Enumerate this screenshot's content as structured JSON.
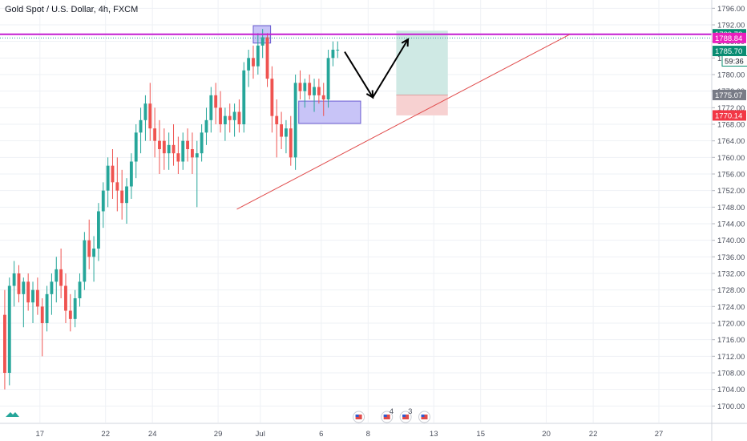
{
  "header": {
    "symbol_title": "Gold Spot / U.S. Dollar, 4h, FXCM"
  },
  "chart_data": {
    "type": "candlestick",
    "symbol": "Gold Spot / U.S. Dollar",
    "timeframe": "4h",
    "source": "FXCM",
    "ylim": [
      1696,
      1798
    ],
    "y_ticks": [
      1700,
      1704,
      1708,
      1712,
      1716,
      1720,
      1724,
      1728,
      1732,
      1736,
      1740,
      1744,
      1748,
      1752,
      1756,
      1760,
      1764,
      1768,
      1772,
      1776,
      1780,
      1784,
      1788,
      1792,
      1796
    ],
    "y_tick_labels": [
      "1700.00",
      "1704.00",
      "1708.00",
      "1712.00",
      "1716.00",
      "1720.00",
      "1724.00",
      "1728.00",
      "1732.00",
      "1736.00",
      "1740.00",
      "1744.00",
      "1748.00",
      "1752.00",
      "1756.00",
      "1760.00",
      "1764.00",
      "1768.00",
      "1772.00",
      "1776.00",
      "1780.00",
      "1784.00",
      "1788.00",
      "1792.00",
      "1796.00"
    ],
    "x_ticks": [
      {
        "label": "17",
        "bar": 8
      },
      {
        "label": "22",
        "bar": 22
      },
      {
        "label": "24",
        "bar": 32
      },
      {
        "label": "29",
        "bar": 46
      },
      {
        "label": "Jul",
        "bar": 55
      },
      {
        "label": "6",
        "bar": 68
      },
      {
        "label": "8",
        "bar": 78
      },
      {
        "label": "13",
        "bar": 92
      },
      {
        "label": "15",
        "bar": 102
      },
      {
        "label": "20",
        "bar": 116
      },
      {
        "label": "22",
        "bar": 126
      },
      {
        "label": "27",
        "bar": 140
      }
    ],
    "candles": [
      [
        1722,
        1728,
        1704,
        1708
      ],
      [
        1708,
        1731,
        1705,
        1729
      ],
      [
        1729,
        1735,
        1724,
        1732
      ],
      [
        1732,
        1734,
        1725,
        1727
      ],
      [
        1727,
        1731,
        1719,
        1730
      ],
      [
        1730,
        1732,
        1723,
        1725
      ],
      [
        1725,
        1730,
        1720,
        1728
      ],
      [
        1728,
        1731,
        1722,
        1724
      ],
      [
        1724,
        1726,
        1712,
        1720
      ],
      [
        1720,
        1729,
        1718,
        1727
      ],
      [
        1727,
        1732,
        1722,
        1730
      ],
      [
        1730,
        1736,
        1725,
        1733
      ],
      [
        1733,
        1738,
        1726,
        1729
      ],
      [
        1729,
        1732,
        1720,
        1723
      ],
      [
        1723,
        1727,
        1718,
        1721
      ],
      [
        1721,
        1728,
        1719,
        1726
      ],
      [
        1726,
        1732,
        1724,
        1730
      ],
      [
        1730,
        1742,
        1728,
        1740
      ],
      [
        1740,
        1745,
        1733,
        1736
      ],
      [
        1736,
        1741,
        1730,
        1738
      ],
      [
        1738,
        1749,
        1735,
        1747
      ],
      [
        1747,
        1754,
        1743,
        1752
      ],
      [
        1752,
        1760,
        1748,
        1758
      ],
      [
        1758,
        1762,
        1750,
        1754
      ],
      [
        1754,
        1760,
        1747,
        1752
      ],
      [
        1752,
        1757,
        1745,
        1749
      ],
      [
        1749,
        1755,
        1744,
        1753
      ],
      [
        1753,
        1761,
        1750,
        1759
      ],
      [
        1759,
        1768,
        1755,
        1766
      ],
      [
        1766,
        1772,
        1761,
        1769
      ],
      [
        1769,
        1775,
        1764,
        1773
      ],
      [
        1773,
        1778,
        1764,
        1767
      ],
      [
        1767,
        1772,
        1760,
        1764
      ],
      [
        1764,
        1769,
        1756,
        1762
      ],
      [
        1764,
        1767,
        1757,
        1761
      ],
      [
        1761,
        1766,
        1757,
        1763
      ],
      [
        1763,
        1768,
        1758,
        1761
      ],
      [
        1761,
        1765,
        1756,
        1759
      ],
      [
        1759,
        1766,
        1757,
        1764
      ],
      [
        1764,
        1767,
        1759,
        1762
      ],
      [
        1762,
        1766,
        1756,
        1760
      ],
      [
        1760,
        1764,
        1748,
        1761
      ],
      [
        1761,
        1768,
        1759,
        1766
      ],
      [
        1766,
        1772,
        1763,
        1769
      ],
      [
        1769,
        1777,
        1766,
        1775
      ],
      [
        1775,
        1778,
        1768,
        1772
      ],
      [
        1772,
        1776,
        1766,
        1768
      ],
      [
        1768,
        1772,
        1764,
        1770
      ],
      [
        1770,
        1773,
        1766,
        1769
      ],
      [
        1769,
        1773,
        1765,
        1771
      ],
      [
        1771,
        1774,
        1766,
        1768
      ],
      [
        1768,
        1783,
        1766,
        1781
      ],
      [
        1781,
        1786,
        1777,
        1784
      ],
      [
        1784,
        1787,
        1779,
        1782
      ],
      [
        1782,
        1790,
        1780,
        1787
      ],
      [
        1787,
        1791,
        1784,
        1789
      ],
      [
        1789,
        1790,
        1777,
        1779
      ],
      [
        1779,
        1782,
        1766,
        1770
      ],
      [
        1770,
        1774,
        1760,
        1768
      ],
      [
        1768,
        1771,
        1762,
        1765
      ],
      [
        1765,
        1769,
        1761,
        1767
      ],
      [
        1767,
        1770,
        1758,
        1760
      ],
      [
        1760,
        1780,
        1757,
        1778
      ],
      [
        1778,
        1781,
        1774,
        1776
      ],
      [
        1776,
        1779,
        1772,
        1778
      ],
      [
        1778,
        1780,
        1774,
        1775
      ],
      [
        1775,
        1779,
        1771,
        1777
      ],
      [
        1777,
        1779,
        1773,
        1775
      ],
      [
        1775,
        1778,
        1770,
        1774
      ],
      [
        1774,
        1786,
        1772,
        1784
      ],
      [
        1784,
        1788,
        1782,
        1786
      ],
      [
        1786,
        1788,
        1784,
        1786
      ]
    ],
    "annotations": {
      "resistance_level": 1789.73,
      "trendline": [
        {
          "bar": 50,
          "price": 1747.5
        },
        {
          "bar": 121,
          "price": 1789.7
        }
      ],
      "box_top": {
        "bar_start": 53.5,
        "bar_end": 57.2,
        "price_top": 1791.8,
        "price_bottom": 1787.6
      },
      "box_bottom": {
        "bar_start": 63.2,
        "bar_end": 76.4,
        "price_top": 1773.6,
        "price_bottom": 1768.2
      },
      "arrow_path": [
        {
          "bar": 73,
          "price": 1785.5
        },
        {
          "bar": 79,
          "price": 1774.5
        },
        {
          "bar": 86.5,
          "price": 1788.5
        }
      ],
      "long_position": {
        "bar_start": 84,
        "bar_end": 95,
        "target": 1790.6,
        "entry": 1775.07,
        "stop": 1770.14
      }
    },
    "price_tags": [
      {
        "value": "1789.73",
        "color": "#098c72",
        "price": 1789.73
      },
      {
        "value": "1788.84",
        "color": "#e91ebd",
        "price": 1788.84
      },
      {
        "value": "1785.70",
        "color": "#098c72",
        "price": 1785.7
      },
      {
        "value": "59:36",
        "color": "#098c72",
        "price": 1783.3,
        "bordered": true
      },
      {
        "value": "1775.07",
        "color": "#787b86",
        "price": 1775.07
      },
      {
        "value": "1770.14",
        "color": "#f23645",
        "price": 1770.14
      }
    ],
    "event_badges": [
      {
        "bar": 76
      },
      {
        "bar": 82,
        "count": "4"
      },
      {
        "bar": 86,
        "count": "3"
      },
      {
        "bar": 90
      }
    ],
    "colors": {
      "up": "#26a69a",
      "down": "#ef5350",
      "grid": "#eef1f5",
      "resistance": "#c41fd1",
      "trendline": "#e04b4b",
      "box_fill": "#c8c4f7",
      "box_stroke": "#6a5bd1",
      "profit_zone": "#cfe9e4",
      "loss_zone": "#f7d1d1",
      "current_price_line": "#26a69a"
    }
  }
}
